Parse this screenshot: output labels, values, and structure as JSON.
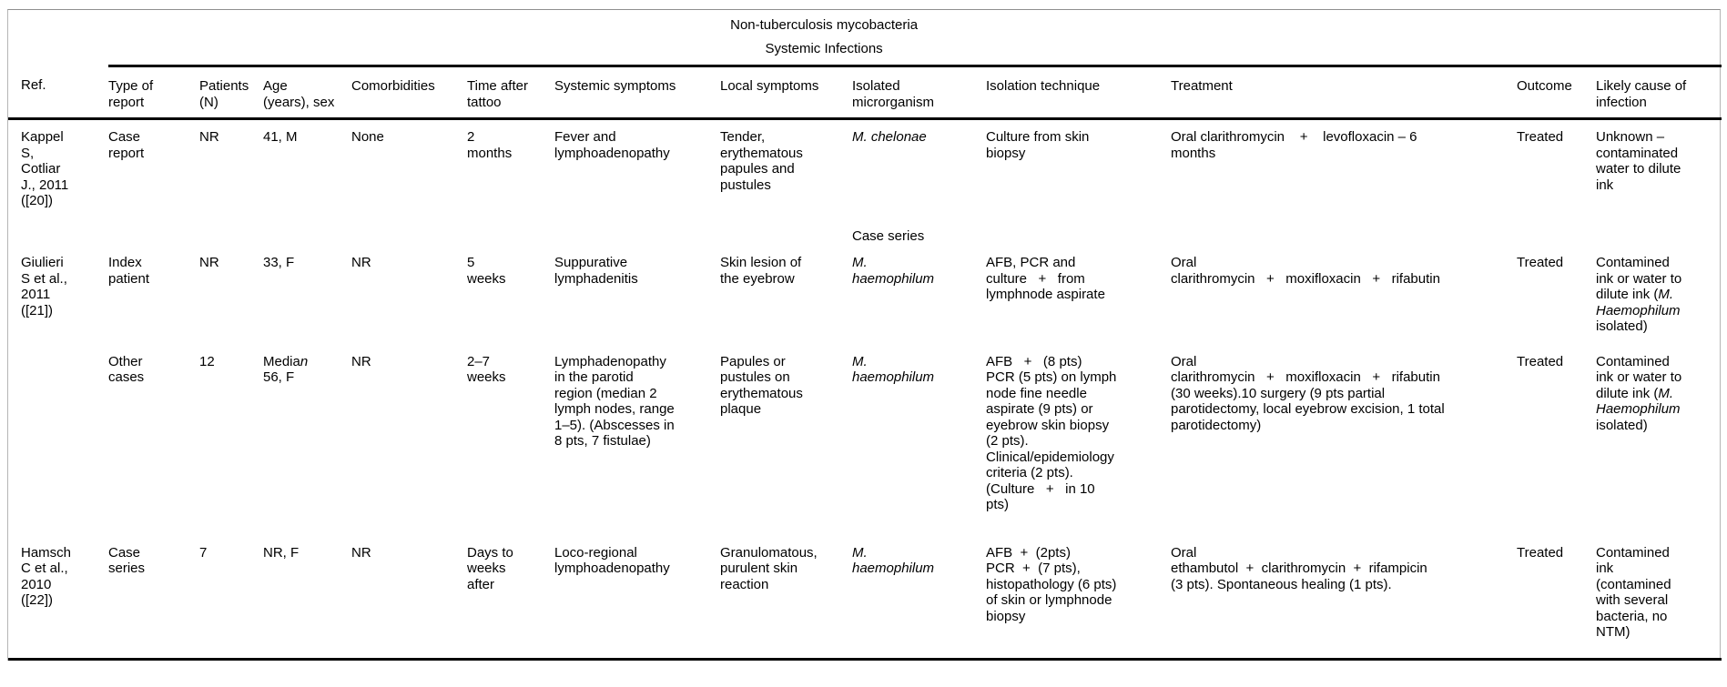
{
  "table": {
    "group_header_line1": "Non-tuberculosis mycobacteria",
    "group_header_line2": "Systemic Infections",
    "columns": [
      "Ref.",
      "Type of report",
      "Patients (N)",
      "Age (years), sex",
      "Comorbidities",
      "Time after tattoo",
      "Systemic symptoms",
      "Local symptoms",
      "Isolated microrganism",
      "Isolation technique",
      "Treatment",
      "Outcome",
      "Likely cause of infection"
    ],
    "rows": [
      {
        "name": "row-kappel",
        "cells": [
          [
            "Kappel",
            "S,",
            "Cotliar",
            "J., 2011",
            "([20])"
          ],
          [
            "Case",
            "report"
          ],
          "NR",
          "41, M",
          "None",
          [
            "2",
            "months"
          ],
          [
            "Fever and",
            "lymphoadenopathy"
          ],
          [
            "Tender,",
            "erythematous",
            "papules and",
            "pustules"
          ],
          [
            [
              {
                "t": "M. chelonae",
                "i": true
              }
            ]
          ],
          [
            "Culture from skin",
            "biopsy"
          ],
          [
            "Oral clarithromycin    +    levofloxacin – 6",
            "months"
          ],
          "Treated",
          [
            "Unknown –",
            "contaminated",
            "water to dilute",
            "ink"
          ]
        ]
      },
      {
        "name": "row-case-series-label",
        "cells": [
          "",
          "",
          "",
          "",
          "",
          "",
          "",
          "",
          "Case series",
          "",
          "",
          "",
          ""
        ]
      },
      {
        "name": "row-giulieri-index",
        "cells": [
          [
            "Giulieri",
            "S et al.,",
            "2011",
            "([21])"
          ],
          [
            "Index",
            "patient"
          ],
          "NR",
          "33, F",
          "NR",
          [
            "5",
            "weeks"
          ],
          [
            "Suppurative",
            "lymphadenitis"
          ],
          [
            "Skin lesion of",
            "the eyebrow"
          ],
          [
            [
              {
                "t": "M.",
                "i": true
              }
            ],
            [
              {
                "t": "haemophilum",
                "i": true
              }
            ]
          ],
          [
            "AFB, PCR and",
            "culture   +   from",
            "lymphnode aspirate"
          ],
          [
            "Oral",
            "clarithromycin   +   moxifloxacin   +   rifabutin"
          ],
          "Treated",
          [
            "Contamined",
            "ink or water to",
            [
              {
                "t": "dilute ink ("
              },
              {
                "t": "M.",
                "i": true
              }
            ],
            [
              {
                "t": "Haemophilum",
                "i": true
              }
            ],
            "isolated)"
          ]
        ]
      },
      {
        "name": "row-giulieri-other",
        "cells": [
          "",
          [
            "Other",
            "cases"
          ],
          "12",
          [
            [
              {
                "t": "Media"
              },
              {
                "t": "n",
                "i": true
              }
            ],
            "56, F"
          ],
          "NR",
          [
            "2–7",
            "weeks"
          ],
          [
            "Lymphadenopathy",
            "in the parotid",
            "region (median 2",
            "lymph nodes, range",
            "1–5). (Abscesses in",
            "8 pts, 7 fistulae)"
          ],
          [
            "Papules or",
            "pustules on",
            "erythematous",
            "plaque"
          ],
          [
            [
              {
                "t": "M.",
                "i": true
              }
            ],
            [
              {
                "t": "haemophilum",
                "i": true
              }
            ]
          ],
          [
            "AFB   +   (8 pts)",
            "PCR (5 pts) on lymph",
            "node fine needle",
            "aspirate (9 pts) or",
            "eyebrow skin biopsy",
            "(2 pts).",
            "Clinical/epidemiology",
            "criteria (2 pts).",
            "(Culture   +   in 10",
            "pts)"
          ],
          [
            "Oral",
            "clarithromycin   +   moxifloxacin   +   rifabutin",
            "(30 weeks).10 surgery (9 pts partial",
            "parotidectomy, local eyebrow excision, 1 total",
            "parotidectomy)"
          ],
          "Treated",
          [
            "Contamined",
            "ink or water to",
            [
              {
                "t": "dilute ink ("
              },
              {
                "t": "M.",
                "i": true
              }
            ],
            [
              {
                "t": "Haemophilum",
                "i": true
              }
            ],
            "isolated)"
          ]
        ]
      },
      {
        "name": "row-hamsch",
        "cells": [
          [
            "Hamsch",
            "C et al.,",
            "2010",
            "([22])"
          ],
          [
            "Case",
            "series"
          ],
          "7",
          "NR, F",
          "NR",
          [
            "Days to",
            "weeks",
            "after"
          ],
          [
            "Loco-regional",
            "lymphoadenopathy"
          ],
          [
            "Granulomatous,",
            "purulent skin",
            "reaction"
          ],
          [
            [
              {
                "t": "M.",
                "i": true
              }
            ],
            [
              {
                "t": "haemophilum",
                "i": true
              }
            ]
          ],
          [
            "AFB  +  (2pts)",
            "PCR  +  (7 pts),",
            "histopathology (6 pts)",
            "of skin or lymphnode",
            "biopsy"
          ],
          [
            "Oral",
            "ethambutol  +  clarithromycin  +  rifampicin",
            "(3 pts). Spontaneous healing (1 pts)."
          ],
          "Treated",
          [
            "Contamined",
            "ink",
            "(contamined",
            "with several",
            "bacteria, no",
            "NTM)"
          ]
        ]
      }
    ]
  }
}
